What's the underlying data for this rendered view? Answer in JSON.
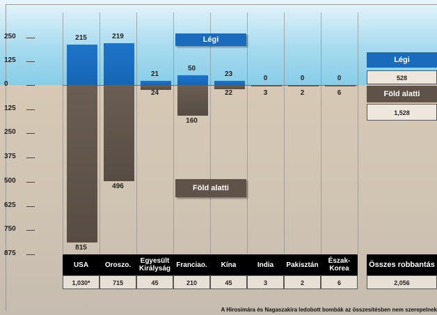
{
  "chart_data": {
    "type": "bar",
    "categories": [
      "USA",
      "Oroszo.",
      "Egyesült Királyság",
      "Franciao.",
      "Kína",
      "India",
      "Pakisztán",
      "Észak-Korea"
    ],
    "series": [
      {
        "name": "Légi",
        "values": [
          215,
          219,
          21,
          50,
          23,
          0,
          0,
          0
        ]
      },
      {
        "name": "Föld alatti",
        "values": [
          815,
          496,
          24,
          160,
          22,
          3,
          2,
          6
        ]
      }
    ],
    "value_labels_air": [
      "215",
      "219",
      "21",
      "50",
      "23",
      "0",
      "0",
      "0"
    ],
    "value_labels_under": [
      "815",
      "496",
      "24",
      "160",
      "22",
      "3",
      "2",
      "6"
    ],
    "totals": [
      "1,030*",
      "715",
      "45",
      "210",
      "45",
      "3",
      "2",
      "6"
    ],
    "yticks_up": [
      "250",
      "125",
      "0"
    ],
    "yticks_down": [
      "125",
      "250",
      "375",
      "500",
      "625",
      "750",
      "875"
    ],
    "ylim_up": [
      0,
      250
    ],
    "ylim_down": [
      0,
      875
    ],
    "legend": {
      "air": "Légi",
      "under": "Föld alatti"
    },
    "summary": {
      "air_label": "Légi",
      "air_value": "528",
      "under_label": "Föld alatti",
      "under_value": "1,528",
      "total_label": "Összes robbantás",
      "total_value": "2,056"
    },
    "footnote": "A Hirosimára és Nagaszakira ledobott bombák az összesítésben nem szerepelnek",
    "colors": {
      "air": "#1b6bbd",
      "under": "#5f5248"
    }
  }
}
